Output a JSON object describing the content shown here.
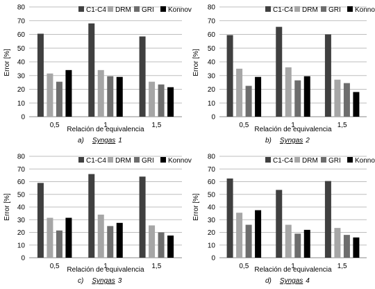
{
  "chart_data": [
    {
      "type": "bar",
      "caption_letter": "a)",
      "caption_name": "Syngas",
      "caption_num": "1",
      "categories": [
        "0,5",
        "1",
        "1,5"
      ],
      "series": [
        {
          "name": "C1-C4",
          "values": [
            60.5,
            68,
            58.5
          ]
        },
        {
          "name": "DRM",
          "values": [
            31.5,
            34,
            25.5
          ]
        },
        {
          "name": "GRI",
          "values": [
            25.5,
            29.5,
            23.5
          ]
        },
        {
          "name": "Konnov",
          "values": [
            34,
            29,
            21.5
          ]
        }
      ],
      "xlabel": "Relación de equivalencia",
      "ylabel": "Error [%]",
      "ylim": [
        0,
        80
      ],
      "yticks": [
        "0",
        "10",
        "20",
        "30",
        "40",
        "50",
        "60",
        "70",
        "80"
      ],
      "grid": true,
      "legend": "top-right"
    },
    {
      "type": "bar",
      "caption_letter": "b)",
      "caption_name": "Syngas",
      "caption_num": "2",
      "categories": [
        "0,5",
        "1",
        "1,5"
      ],
      "series": [
        {
          "name": "C1-C4",
          "values": [
            59.5,
            65.5,
            60
          ]
        },
        {
          "name": "DRM",
          "values": [
            35,
            36,
            27
          ]
        },
        {
          "name": "GRI",
          "values": [
            22.5,
            26.5,
            24.5
          ]
        },
        {
          "name": "Konnov",
          "values": [
            29,
            29.5,
            18
          ]
        }
      ],
      "xlabel": "Relación de equivalencia",
      "ylabel": "Error [%]",
      "ylim": [
        0,
        80
      ],
      "yticks": [
        "0",
        "10",
        "20",
        "30",
        "40",
        "50",
        "60",
        "70",
        "80"
      ],
      "grid": true,
      "legend": "top-right"
    },
    {
      "type": "bar",
      "caption_letter": "c)",
      "caption_name": "Syngas",
      "caption_num": "3",
      "categories": [
        "0,5",
        "1",
        "1,5"
      ],
      "series": [
        {
          "name": "C1-C4",
          "values": [
            59,
            66,
            64
          ]
        },
        {
          "name": "DRM",
          "values": [
            31.5,
            34,
            25.5
          ]
        },
        {
          "name": "GRI",
          "values": [
            21.5,
            25,
            20
          ]
        },
        {
          "name": "Konnov",
          "values": [
            31.5,
            27.5,
            17.5
          ]
        }
      ],
      "xlabel": "Relación de equivalencia",
      "ylabel": "Error [%]",
      "ylim": [
        0,
        80
      ],
      "yticks": [
        "0",
        "10",
        "20",
        "30",
        "40",
        "50",
        "60",
        "70",
        "80"
      ],
      "grid": true,
      "legend": "top-right"
    },
    {
      "type": "bar",
      "caption_letter": "d)",
      "caption_name": "Syngas",
      "caption_num": "4",
      "categories": [
        "0,5",
        "1",
        "1,5"
      ],
      "series": [
        {
          "name": "C1-C4",
          "values": [
            62.5,
            53.5,
            60.5
          ]
        },
        {
          "name": "DRM",
          "values": [
            35.5,
            26,
            23.5
          ]
        },
        {
          "name": "GRI",
          "values": [
            26,
            19,
            18
          ]
        },
        {
          "name": "Konnov",
          "values": [
            37.5,
            22,
            16
          ]
        }
      ],
      "xlabel": "Relación de equivalencia",
      "ylabel": "Error [%]",
      "ylim": [
        0,
        80
      ],
      "yticks": [
        "0",
        "10",
        "20",
        "30",
        "40",
        "50",
        "60",
        "70",
        "80"
      ],
      "grid": true,
      "legend": "top-right"
    }
  ],
  "colors": {
    "C1-C4": "#404040",
    "DRM": "#a6a6a6",
    "GRI": "#6d6d6d",
    "Konnov": "#000000"
  }
}
